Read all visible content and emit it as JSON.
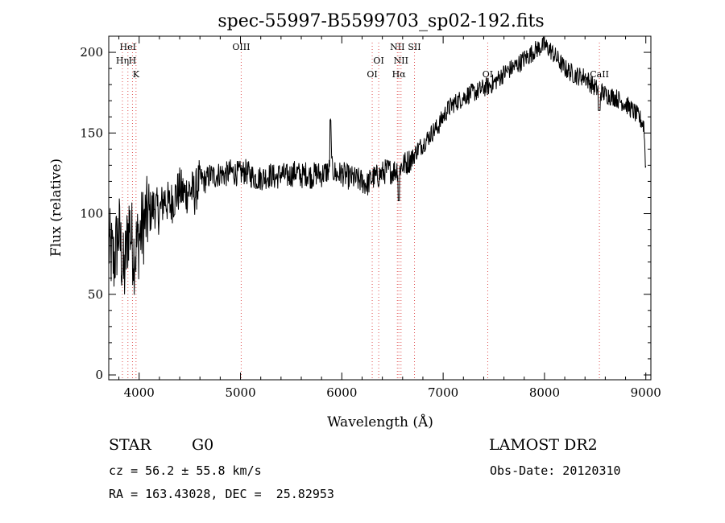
{
  "chart_data": {
    "type": "line",
    "title": "spec-55997-B5599703_sp02-192.fits",
    "xlabel": "Wavelength (Å)",
    "ylabel": "Flux (relative)",
    "xlim": [
      3700,
      9050
    ],
    "ylim": [
      -3,
      210
    ],
    "x_ticks": [
      4000,
      5000,
      6000,
      7000,
      8000,
      9000
    ],
    "y_ticks": [
      0,
      50,
      100,
      150,
      200
    ],
    "grid": false,
    "series": [
      {
        "color": "#000000",
        "x": [
          3700,
          3750,
          3800,
          3850,
          3900,
          3950,
          4000,
          4050,
          4100,
          4150,
          4200,
          4250,
          4300,
          4350,
          4400,
          4450,
          4500,
          4550,
          4600,
          4650,
          4700,
          4750,
          4800,
          4850,
          4900,
          4950,
          5000,
          5050,
          5100,
          5150,
          5200,
          5250,
          5300,
          5350,
          5400,
          5450,
          5500,
          5550,
          5600,
          5650,
          5700,
          5750,
          5800,
          5850,
          5900,
          5950,
          6000,
          6050,
          6100,
          6150,
          6200,
          6250,
          6300,
          6350,
          6400,
          6450,
          6500,
          6550,
          6600,
          6650,
          6700,
          6750,
          6800,
          6850,
          6900,
          6950,
          7000,
          7050,
          7100,
          7150,
          7200,
          7250,
          7300,
          7350,
          7400,
          7450,
          7500,
          7550,
          7600,
          7650,
          7700,
          7750,
          7800,
          7850,
          7900,
          7950,
          8000,
          8050,
          8100,
          8150,
          8200,
          8250,
          8300,
          8350,
          8400,
          8450,
          8500,
          8550,
          8600,
          8650,
          8700,
          8750,
          8800,
          8850,
          8900,
          8950,
          8980,
          9000
        ],
        "y": [
          80,
          70,
          90,
          60,
          95,
          75,
          85,
          95,
          100,
          105,
          100,
          110,
          105,
          110,
          115,
          112,
          115,
          112,
          122,
          120,
          124,
          123,
          125,
          124,
          126,
          125,
          125,
          126,
          124,
          122,
          122,
          123,
          124,
          122,
          125,
          123,
          124,
          126,
          123,
          125,
          123,
          125,
          124,
          126,
          128,
          124,
          125,
          123,
          122,
          121,
          120,
          118,
          122,
          123,
          125,
          127,
          126,
          128,
          130,
          132,
          135,
          140,
          143,
          147,
          151,
          154,
          160,
          165,
          168,
          170,
          172,
          174,
          175,
          176,
          178,
          179,
          181,
          184,
          187,
          189,
          191,
          193,
          196,
          198,
          201,
          203,
          204,
          202,
          198,
          194,
          190,
          188,
          186,
          185,
          185,
          181,
          178,
          176,
          174,
          173,
          172,
          170,
          168,
          165,
          162,
          158,
          155,
          128
        ]
      }
    ],
    "spectral_lines": [
      {
        "label": "HeI",
        "x": 3889,
        "row": 0
      },
      {
        "label": "Hη",
        "x": 3835,
        "row": 1
      },
      {
        "label": "H",
        "x": 3934,
        "row": 1
      },
      {
        "label": "K",
        "x": 3969,
        "row": 2
      },
      {
        "label": "OIII",
        "x": 5007,
        "row": 0
      },
      {
        "label": "OI",
        "x": 6300,
        "row": 2
      },
      {
        "label": "OI",
        "x": 6364,
        "row": 1
      },
      {
        "label": "NII",
        "x": 6548,
        "row": 0
      },
      {
        "label": "NII",
        "x": 6584,
        "row": 1
      },
      {
        "label": "Hα",
        "x": 6563,
        "row": 2
      },
      {
        "label": "SII",
        "x": 6717,
        "row": 0
      },
      {
        "label": "OI",
        "x": 7440,
        "row": 2
      },
      {
        "label": "CaII",
        "x": 8542,
        "row": 2
      }
    ]
  },
  "info": {
    "class": "STAR",
    "subclass": "G0",
    "survey": "LAMOST DR2",
    "cz": "cz = 56.2 ± 55.8 km/s",
    "obs_date": "Obs-Date: 20120310",
    "coords": "RA = 163.43028, DEC =  25.82953"
  }
}
